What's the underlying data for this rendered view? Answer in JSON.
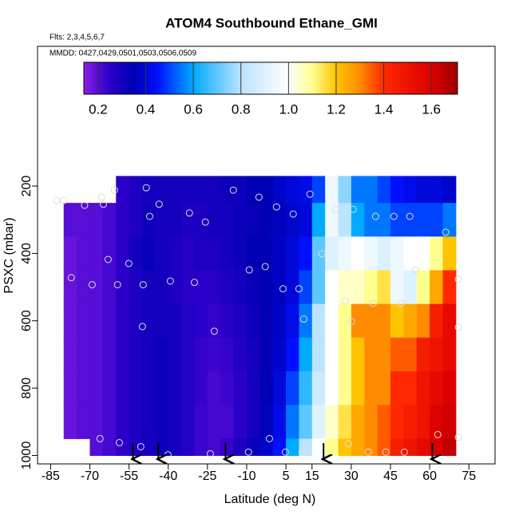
{
  "chart_data": {
    "type": "curtain",
    "title": "ATOM4 Southbound Ethane_GMI",
    "subtitle": "Flts: 2,3,4,5,6,7",
    "annotation": "MMDD: 0427,0429,0501,0503,0506,0509",
    "xlabel": "Latitude (deg N)",
    "ylabel": "PSXC (mbar)",
    "xlim": [
      -90,
      85
    ],
    "ylim": [
      1025,
      -215
    ],
    "xticks": [
      -85,
      -70,
      -55,
      -40,
      -25,
      -10,
      5,
      15,
      30,
      45,
      60,
      75
    ],
    "yticks": [
      200,
      400,
      600,
      800,
      1000
    ],
    "lat_edges": [
      -80,
      -75,
      -70,
      -65,
      -60,
      -55,
      -50,
      -45,
      -40,
      -35,
      -30,
      -25,
      -20,
      -15,
      -10,
      -5,
      0,
      5,
      10,
      15,
      20,
      25,
      30,
      35,
      40,
      45,
      50,
      55,
      60,
      65,
      70
    ],
    "pressure_edges": [
      170,
      250,
      350,
      450,
      550,
      650,
      750,
      850,
      950,
      1000
    ],
    "values": [
      [
        null,
        null,
        null,
        null,
        0.25,
        0.28,
        0.3,
        0.3,
        0.3,
        0.3,
        0.3,
        0.3,
        0.32,
        0.32,
        0.35,
        0.35,
        0.38,
        0.4,
        0.42,
        0.5,
        0.95,
        0.75,
        0.55,
        0.55,
        0.5,
        0.45,
        0.42,
        0.4,
        0.4,
        0.38
      ],
      [
        0.2,
        0.2,
        0.2,
        0.22,
        0.25,
        0.28,
        0.32,
        0.3,
        0.3,
        0.28,
        0.28,
        0.3,
        0.3,
        0.32,
        0.33,
        0.35,
        0.36,
        0.38,
        0.4,
        0.6,
        0.95,
        0.8,
        0.6,
        0.55,
        0.55,
        0.5,
        0.5,
        0.5,
        0.5,
        0.55
      ],
      [
        0.18,
        0.2,
        0.2,
        0.22,
        0.25,
        0.3,
        0.33,
        0.3,
        0.28,
        0.26,
        0.28,
        0.28,
        0.3,
        0.32,
        0.35,
        0.35,
        0.37,
        0.4,
        0.45,
        0.7,
        0.9,
        0.95,
        1.0,
        0.95,
        0.9,
        0.95,
        1.0,
        1.0,
        1.1,
        1.2
      ],
      [
        0.18,
        0.2,
        0.2,
        0.22,
        0.25,
        0.28,
        0.3,
        0.3,
        0.28,
        0.25,
        0.25,
        0.25,
        0.28,
        0.3,
        0.33,
        0.35,
        0.37,
        0.4,
        0.5,
        0.7,
        1.0,
        1.05,
        1.05,
        1.1,
        1.15,
        0.95,
        0.9,
        1.1,
        1.25,
        1.4
      ],
      [
        0.18,
        0.2,
        0.2,
        0.22,
        0.25,
        0.28,
        0.3,
        0.3,
        0.3,
        0.27,
        0.25,
        0.24,
        0.25,
        0.28,
        0.32,
        0.35,
        0.37,
        0.42,
        0.55,
        0.8,
        1.0,
        1.1,
        1.3,
        1.3,
        1.3,
        1.2,
        1.25,
        1.3,
        1.45,
        1.55
      ],
      [
        0.18,
        0.2,
        0.2,
        0.22,
        0.25,
        0.28,
        0.3,
        0.32,
        0.3,
        0.27,
        0.24,
        0.23,
        0.24,
        0.27,
        0.3,
        0.34,
        0.38,
        0.45,
        0.6,
        0.8,
        1.0,
        1.1,
        1.2,
        1.3,
        1.3,
        1.35,
        1.35,
        1.45,
        1.5,
        1.55
      ],
      [
        0.18,
        0.2,
        0.2,
        0.22,
        0.25,
        0.28,
        0.3,
        0.32,
        0.3,
        0.27,
        0.24,
        0.22,
        0.23,
        0.25,
        0.3,
        0.35,
        0.4,
        0.5,
        0.65,
        0.85,
        1.0,
        1.1,
        1.2,
        1.3,
        1.3,
        1.4,
        1.4,
        1.5,
        1.55,
        1.6
      ],
      [
        0.18,
        0.2,
        0.2,
        0.22,
        0.25,
        0.28,
        0.3,
        0.32,
        0.3,
        0.27,
        0.23,
        0.22,
        0.22,
        0.25,
        0.3,
        0.36,
        0.42,
        0.55,
        0.7,
        0.9,
        1.05,
        1.15,
        1.25,
        1.3,
        1.35,
        1.4,
        1.45,
        1.5,
        1.6,
        1.62
      ],
      [
        null,
        null,
        0.2,
        0.22,
        0.25,
        0.28,
        0.3,
        0.32,
        0.3,
        0.27,
        0.23,
        0.22,
        0.24,
        0.28,
        0.33,
        0.38,
        0.45,
        0.6,
        0.8,
        1.0,
        1.1,
        1.2,
        1.25,
        1.3,
        1.35,
        1.45,
        1.5,
        1.55,
        1.6,
        1.65
      ]
    ],
    "clim": [
      0.14,
      1.71
    ],
    "colorbar_ticks": [
      0.2,
      0.4,
      0.6,
      0.8,
      {
        "value": 1.0,
        "label": "1.0"
      },
      1.2,
      1.4,
      1.6
    ],
    "colorscale": [
      [
        0.14,
        "#8c1ee6"
      ],
      [
        0.25,
        "#2a00c8"
      ],
      [
        0.35,
        "#0000b4"
      ],
      [
        0.45,
        "#0010ff"
      ],
      [
        0.6,
        "#00aaff"
      ],
      [
        0.8,
        "#bbe4ff"
      ],
      [
        1.0,
        "#ffffff"
      ],
      [
        1.1,
        "#ffff90"
      ],
      [
        1.2,
        "#ffc400"
      ],
      [
        1.3,
        "#ff8c00"
      ],
      [
        1.4,
        "#ff2800"
      ],
      [
        1.6,
        "#dc0000"
      ],
      [
        1.71,
        "#a00000"
      ]
    ],
    "points": {
      "lat": [
        -82.6,
        -80,
        -72,
        -65.5,
        -64.8,
        -60.6,
        -48.4,
        -47.1,
        -43.5,
        -31.9,
        -25.8,
        -15.1,
        -5.3,
        1.4,
        7.8,
        14.2,
        24,
        30.7,
        39.3,
        46.3,
        52.4,
        66.1,
        -55.1,
        -63,
        -77.1,
        -69.1,
        -59.4,
        -49.6,
        -39.2,
        -30,
        -9,
        -2.9,
        3.9,
        10,
        18.8,
        27.7,
        38.4,
        49,
        54.5,
        -49.9,
        -22.4,
        11.8,
        30.1,
        -66.1,
        -58.7,
        -50.5,
        -40.1,
        -23.9,
        -9.3,
        -1.3,
        4.8,
        11.2,
        28.9,
        36.5,
        43.2,
        50.3,
        63.1,
        71,
        71,
        71
      ],
      "p": [
        243,
        243,
        257,
        233,
        254,
        212,
        205,
        290,
        254,
        280,
        307,
        212,
        233,
        262,
        283,
        224,
        269,
        269,
        290,
        290,
        290,
        337,
        430,
        418,
        472,
        493,
        493,
        493,
        482,
        486,
        449,
        439,
        505,
        505,
        401,
        541,
        548,
        548,
        449,
        617,
        631,
        595,
        602,
        950,
        962,
        974,
        998,
        995,
        990,
        950,
        990,
        990,
        965,
        990,
        990,
        990,
        938,
        946,
        619,
        477
      ],
      "color": "#dddddd"
    },
    "arrows": [
      -53.5,
      -43.8,
      -18.1,
      19.4,
      61
    ]
  }
}
